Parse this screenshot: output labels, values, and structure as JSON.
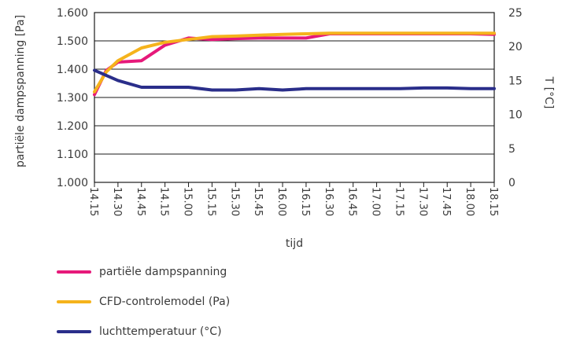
{
  "chart_data": {
    "type": "line",
    "xlabel": "tijd",
    "ylabel_left": "partiële dampspanning [Pa]",
    "ylabel_right": "T [°C]",
    "ylim_left": [
      1000,
      1600
    ],
    "ylim_right": [
      0,
      25
    ],
    "yticks_left": [
      "1.000",
      "1.100",
      "1.200",
      "1.300",
      "1.400",
      "1.500",
      "1.600"
    ],
    "yticks_left_values": [
      1000,
      1100,
      1200,
      1300,
      1400,
      1500,
      1600
    ],
    "yticks_right": [
      "0",
      "5",
      "10",
      "15",
      "20",
      "25"
    ],
    "yticks_right_values": [
      0,
      5,
      10,
      15,
      20,
      25
    ],
    "categories": [
      "14.15",
      "14.30",
      "14.45",
      "14.15",
      "15.00",
      "15.15",
      "15.30",
      "15.45",
      "16.00",
      "16.15",
      "16.30",
      "16.45",
      "17.00",
      "17.15",
      "17.30",
      "17.45",
      "18.00",
      "18.15"
    ],
    "grid": true,
    "legend_position": "bottom-left",
    "series": [
      {
        "name": "partiële dampspanning",
        "axis": "left",
        "color": "#e6197a",
        "points": [
          [
            0,
            1310
          ],
          [
            0.5,
            1395
          ],
          [
            1,
            1425
          ],
          [
            2,
            1430
          ],
          [
            3,
            1485
          ],
          [
            4,
            1510
          ],
          [
            5,
            1505
          ],
          [
            6,
            1508
          ],
          [
            7,
            1510
          ],
          [
            8,
            1510
          ],
          [
            9,
            1510
          ],
          [
            10,
            1525
          ],
          [
            11,
            1525
          ],
          [
            12,
            1525
          ],
          [
            13,
            1525
          ],
          [
            14,
            1525
          ],
          [
            15,
            1525
          ],
          [
            16,
            1525
          ],
          [
            17,
            1523
          ]
        ]
      },
      {
        "name": "CFD-controlemodel (Pa)",
        "axis": "left",
        "color": "#f5b31c",
        "points": [
          [
            0,
            1320
          ],
          [
            0.5,
            1390
          ],
          [
            1,
            1430
          ],
          [
            2,
            1475
          ],
          [
            3,
            1495
          ],
          [
            4,
            1505
          ],
          [
            5,
            1515
          ],
          [
            6,
            1517
          ],
          [
            7,
            1520
          ],
          [
            8,
            1523
          ],
          [
            9,
            1525
          ],
          [
            10,
            1527
          ],
          [
            11,
            1527
          ],
          [
            12,
            1527
          ],
          [
            13,
            1527
          ],
          [
            14,
            1527
          ],
          [
            15,
            1527
          ],
          [
            16,
            1527
          ],
          [
            17,
            1527
          ]
        ]
      },
      {
        "name": "luchttemperatuur (°C)",
        "axis": "right",
        "color": "#2a2e8a",
        "points": [
          [
            0,
            16.5
          ],
          [
            1,
            15.0
          ],
          [
            2,
            14.0
          ],
          [
            3,
            14.0
          ],
          [
            4,
            14.0
          ],
          [
            5,
            13.6
          ],
          [
            6,
            13.6
          ],
          [
            7,
            13.8
          ],
          [
            8,
            13.6
          ],
          [
            9,
            13.8
          ],
          [
            10,
            13.8
          ],
          [
            11,
            13.8
          ],
          [
            12,
            13.8
          ],
          [
            13,
            13.8
          ],
          [
            14,
            13.9
          ],
          [
            15,
            13.9
          ],
          [
            16,
            13.8
          ],
          [
            17,
            13.8
          ]
        ]
      }
    ]
  }
}
